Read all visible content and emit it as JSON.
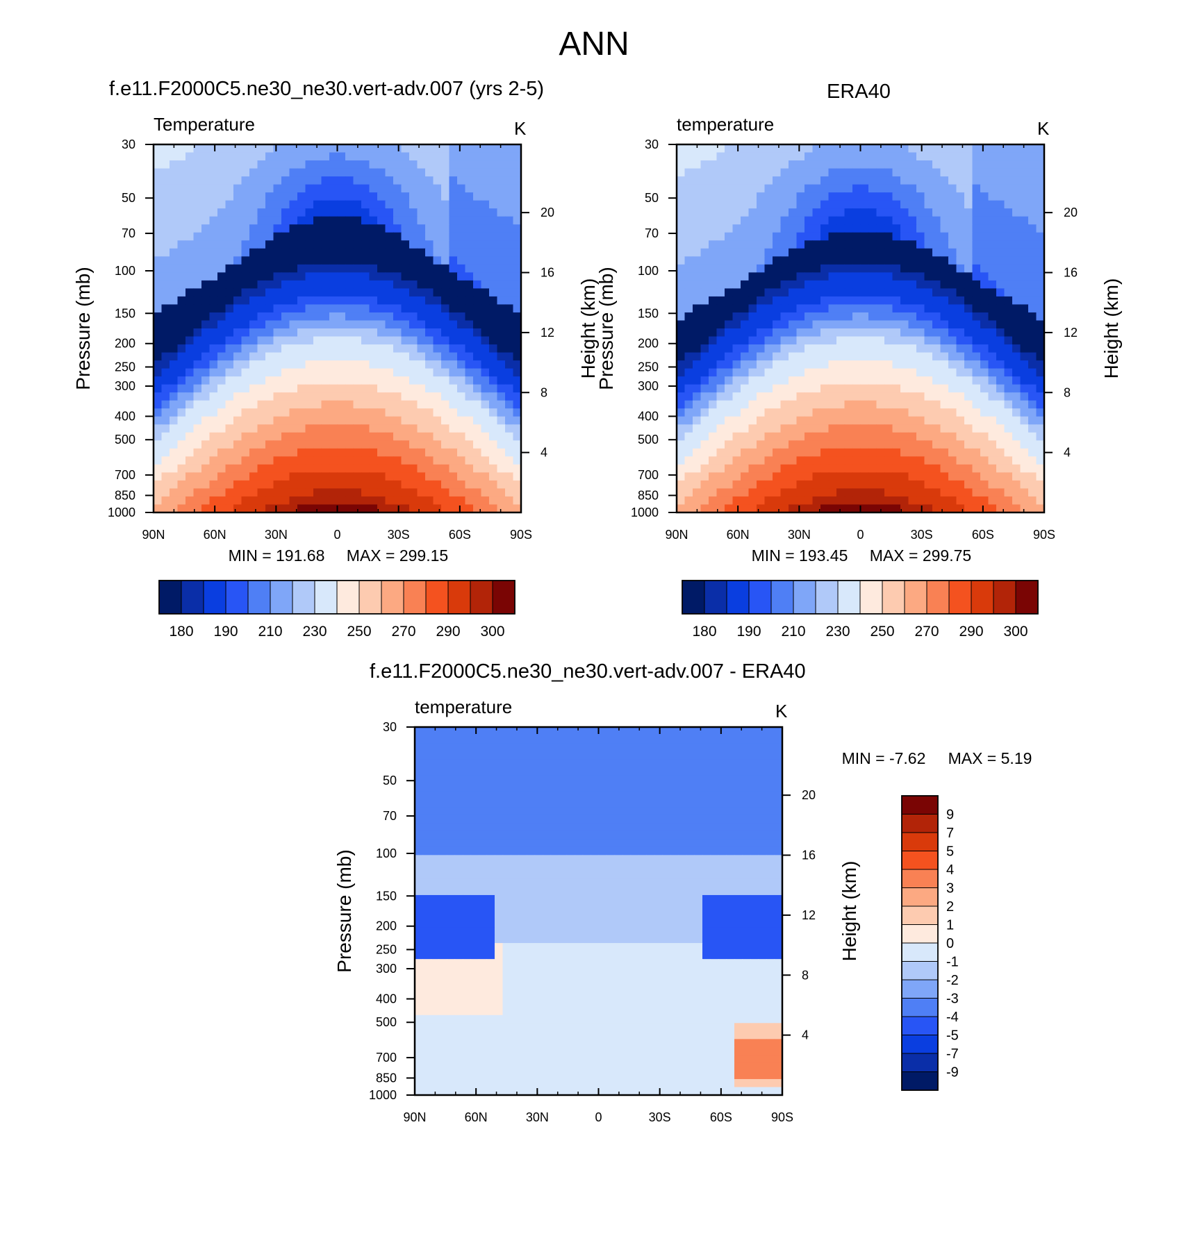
{
  "figure_title": "ANN",
  "colors": {
    "temp_levels": [
      "#001a66",
      "#0a2ea8",
      "#0a3ee0",
      "#2855f5",
      "#4f7ff5",
      "#7fa6f8",
      "#b0c9f9",
      "#d8e8fb",
      "#feeade",
      "#fdcbb0",
      "#fca982",
      "#f98154",
      "#f4521f",
      "#d93a0b",
      "#b22408",
      "#7a0504"
    ],
    "diff_levels": [
      "#001a66",
      "#0a2ea8",
      "#0a3ee0",
      "#2855f5",
      "#4f7ff5",
      "#7fa6f8",
      "#b0c9f9",
      "#d8e8fb",
      "#feeade",
      "#fdcbb0",
      "#fca982",
      "#f98154",
      "#f4521f",
      "#d93a0b",
      "#b22408",
      "#7a0504"
    ]
  },
  "chart_data": [
    {
      "type": "contour",
      "title": "f.e11.F2000C5.ne30_ne30.vert-adv.007 (yrs 2-5)",
      "variable": "Temperature",
      "units": "K",
      "ylabel": "Pressure (mb)",
      "ylabel_right": "Height (km)",
      "x_ticks": [
        "90N",
        "60N",
        "30N",
        "0",
        "30S",
        "60S",
        "90S"
      ],
      "y_ticks": [
        "30",
        "50",
        "70",
        "100",
        "150",
        "200",
        "250",
        "300",
        "400",
        "500",
        "700",
        "850",
        "1000"
      ],
      "height_ticks": [
        "20",
        "16",
        "12",
        "8",
        "4"
      ],
      "min": 191.68,
      "max": 299.15,
      "min_label": "MIN = 191.68",
      "max_label": "MAX = 299.15",
      "colorbar_labels": [
        "180",
        "190",
        "210",
        "230",
        "250",
        "270",
        "290",
        "300"
      ]
    },
    {
      "type": "contour",
      "title": "ERA40",
      "variable": "temperature",
      "units": "K",
      "ylabel": "Pressure (mb)",
      "ylabel_right": "Height (km)",
      "x_ticks": [
        "90N",
        "60N",
        "30N",
        "0",
        "30S",
        "60S",
        "90S"
      ],
      "y_ticks": [
        "30",
        "50",
        "70",
        "100",
        "150",
        "200",
        "250",
        "300",
        "400",
        "500",
        "700",
        "850",
        "1000"
      ],
      "height_ticks": [
        "20",
        "16",
        "12",
        "8",
        "4"
      ],
      "min": 193.45,
      "max": 299.75,
      "min_label": "MIN = 193.45",
      "max_label": "MAX = 299.75",
      "colorbar_labels": [
        "180",
        "190",
        "210",
        "230",
        "250",
        "270",
        "290",
        "300"
      ]
    },
    {
      "type": "contour",
      "title": "f.e11.F2000C5.ne30_ne30.vert-adv.007 - ERA40",
      "variable": "temperature",
      "units": "K",
      "ylabel": "Pressure (mb)",
      "ylabel_right": "Height (km)",
      "x_ticks": [
        "90N",
        "60N",
        "30N",
        "0",
        "30S",
        "60S",
        "90S"
      ],
      "y_ticks": [
        "30",
        "50",
        "70",
        "100",
        "150",
        "200",
        "250",
        "300",
        "400",
        "500",
        "700",
        "850",
        "1000"
      ],
      "height_ticks": [
        "20",
        "16",
        "12",
        "8",
        "4"
      ],
      "min": -7.62,
      "max": 5.19,
      "min_label": "MIN =  -7.62",
      "max_label": "MAX =   5.19",
      "colorbar_labels": [
        "9",
        "7",
        "5",
        "4",
        "3",
        "2",
        "1",
        "0",
        "-1",
        "-2",
        "-3",
        "-4",
        "-5",
        "-7",
        "-9"
      ]
    }
  ]
}
